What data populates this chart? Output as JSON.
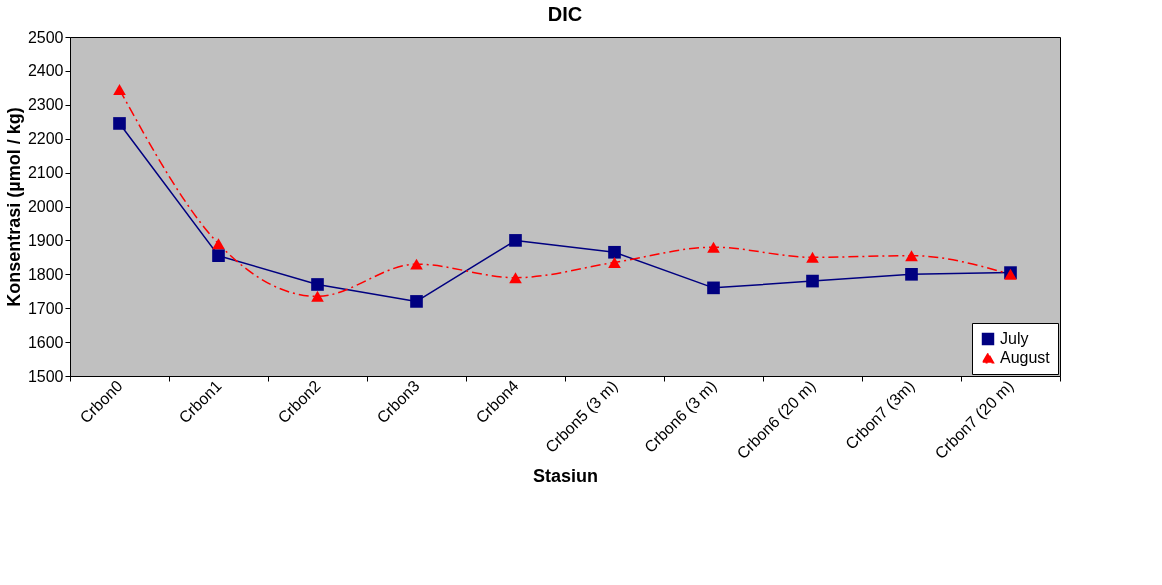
{
  "chart_data": {
    "type": "line",
    "title": "DIC",
    "xlabel": "Stasiun",
    "ylabel": "Konsentrasi (µmol / kg)",
    "categories": [
      "Crbon0",
      "Crbon1",
      "Crbon2",
      "Crbon3",
      "Crbon4",
      "Crbon5 (3 m)",
      "Crbon6 (3 m)",
      "Crbon6 (20 m)",
      "Crbon7 (3m)",
      "Crbon7 (20 m)"
    ],
    "series": [
      {
        "name": "July",
        "color": "#000080",
        "marker": "square",
        "line_style": "solid",
        "values": [
          2245,
          1855,
          1770,
          1720,
          1900,
          1865,
          1760,
          1780,
          1800,
          1805
        ]
      },
      {
        "name": "August",
        "color": "#ff0000",
        "marker": "triangle",
        "line_style": "dashed",
        "values": [
          2345,
          1890,
          1735,
          1830,
          1790,
          1835,
          1880,
          1850,
          1855,
          1800
        ]
      }
    ],
    "ylim": [
      1500,
      2500
    ],
    "yticks": [
      1500,
      1600,
      1700,
      1800,
      1900,
      2000,
      2100,
      2200,
      2300,
      2400,
      2500
    ],
    "legend": "bottom right"
  }
}
